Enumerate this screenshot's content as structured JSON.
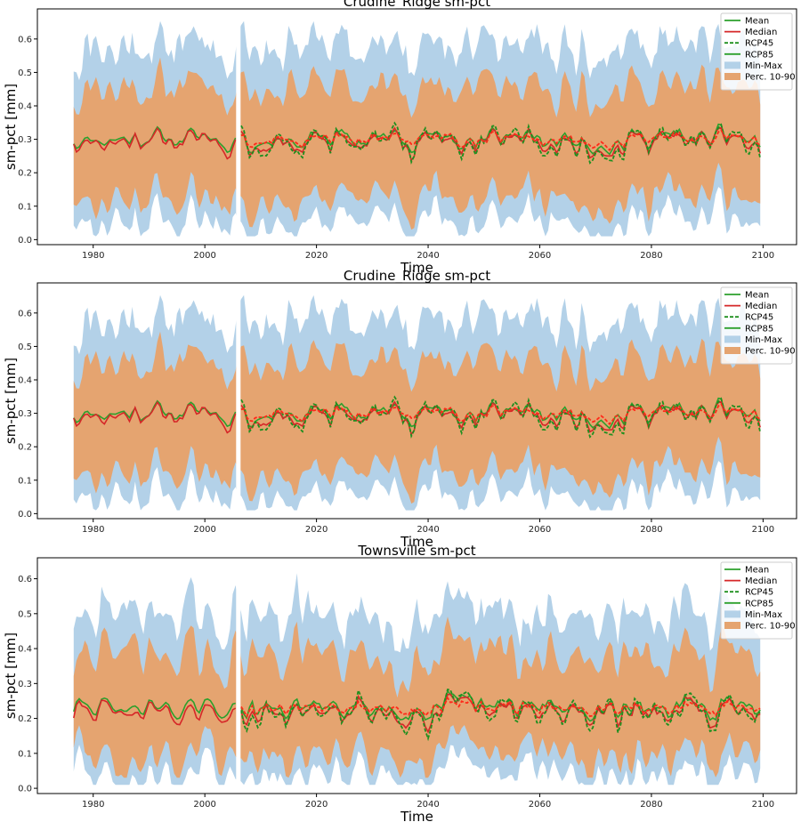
{
  "colors": {
    "minmax": "#b3d1e8",
    "perc": "#e5a470",
    "mean": "#2ca02c",
    "median": "#d62728",
    "rcp45": "#1f8f1f",
    "rcp85_line": "#ff2a1a",
    "axis": "#000000"
  },
  "chart_data": [
    {
      "type": "area",
      "title": "Crudine_Ridge sm-pct",
      "xlabel": "Time",
      "ylabel": "sm-pct [mm]",
      "xlim": [
        1970,
        2106
      ],
      "ylim": [
        -0.015,
        0.69
      ],
      "xticks": [
        1980,
        2000,
        2020,
        2040,
        2060,
        2080,
        2100
      ],
      "xtick_labels": [
        "1980",
        "2000",
        "2020",
        "2040",
        "2060",
        "2080",
        "2100"
      ],
      "yticks": [
        0.0,
        0.1,
        0.2,
        0.3,
        0.4,
        0.5,
        0.6
      ],
      "ytick_labels": [
        "0.0",
        "0.1",
        "0.2",
        "0.3",
        "0.4",
        "0.5",
        "0.6"
      ],
      "legend_position": "top-right",
      "legend": [
        "Mean",
        "Median",
        "RCP45",
        "RCP85",
        "Min-Max",
        "Perc. 10-90"
      ],
      "gap": [
        2005.6,
        2006.4
      ],
      "series": {
        "x_start": 1976.5,
        "x_end": 2099.5,
        "n": 247,
        "mean_base": 0.3,
        "median_offset": -0.008,
        "amp": 0.055,
        "p10_base": 0.13,
        "p90_base": 0.45,
        "min_base": 0.07,
        "max_base": 0.55,
        "seed": 11
      }
    },
    {
      "type": "area",
      "title": "Crudine_Ridge sm-pct",
      "xlabel": "Time",
      "ylabel": "sm-pct [mm]",
      "xlim": [
        1970,
        2106
      ],
      "ylim": [
        -0.015,
        0.69
      ],
      "xticks": [
        1980,
        2000,
        2020,
        2040,
        2060,
        2080,
        2100
      ],
      "xtick_labels": [
        "1980",
        "2000",
        "2020",
        "2040",
        "2060",
        "2080",
        "2100"
      ],
      "yticks": [
        0.0,
        0.1,
        0.2,
        0.3,
        0.4,
        0.5,
        0.6
      ],
      "ytick_labels": [
        "0.0",
        "0.1",
        "0.2",
        "0.3",
        "0.4",
        "0.5",
        "0.6"
      ],
      "legend_position": "top-right",
      "legend": [
        "Mean",
        "Median",
        "RCP45",
        "RCP85",
        "Min-Max",
        "Perc. 10-90"
      ],
      "gap": [
        2005.6,
        2006.4
      ],
      "series": {
        "x_start": 1976.5,
        "x_end": 2099.5,
        "n": 247,
        "mean_base": 0.3,
        "median_offset": -0.008,
        "amp": 0.055,
        "p10_base": 0.13,
        "p90_base": 0.45,
        "min_base": 0.07,
        "max_base": 0.55,
        "seed": 11
      }
    },
    {
      "type": "area",
      "title": "Townsville sm-pct",
      "xlabel": "Time",
      "ylabel": "sm-pct [mm]",
      "xlim": [
        1970,
        2106
      ],
      "ylim": [
        -0.015,
        0.66
      ],
      "xticks": [
        1980,
        2000,
        2020,
        2040,
        2060,
        2080,
        2100
      ],
      "xtick_labels": [
        "1980",
        "2000",
        "2020",
        "2040",
        "2060",
        "2080",
        "2100"
      ],
      "yticks": [
        0.0,
        0.1,
        0.2,
        0.3,
        0.4,
        0.5,
        0.6
      ],
      "ytick_labels": [
        "0.0",
        "0.1",
        "0.2",
        "0.3",
        "0.4",
        "0.5",
        "0.6"
      ],
      "legend_position": "top-right",
      "legend": [
        "Mean",
        "Median",
        "RCP45",
        "RCP85",
        "Min-Max",
        "Perc. 10-90"
      ],
      "gap": [
        2005.6,
        2006.4
      ],
      "series": {
        "x_start": 1976.5,
        "x_end": 2099.5,
        "n": 247,
        "mean_base": 0.23,
        "median_offset": -0.012,
        "amp": 0.045,
        "p10_base": 0.09,
        "p90_base": 0.38,
        "min_base": 0.04,
        "max_base": 0.47,
        "seed": 29
      }
    }
  ]
}
